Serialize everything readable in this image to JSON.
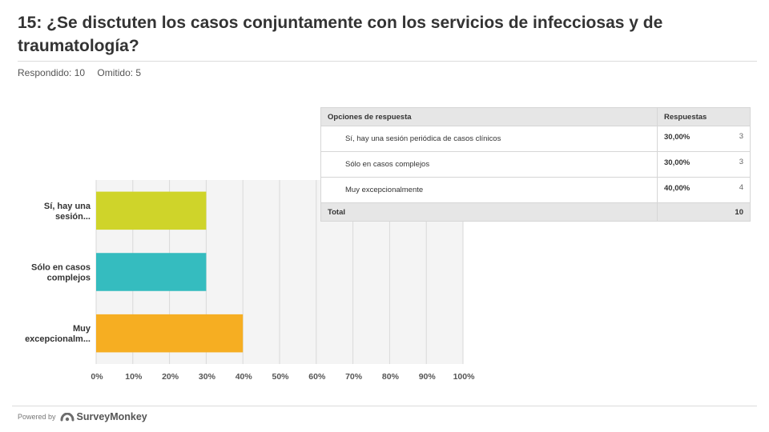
{
  "question": {
    "title": "15: ¿Se disctuten los casos conjuntamente con los servicios de infecciosas y de traumatología?",
    "answered_label": "Respondido: 10",
    "skipped_label": "Omitido: 5"
  },
  "chart_data": {
    "type": "bar",
    "orientation": "horizontal",
    "categories": [
      [
        "Sí, hay una",
        "sesión..."
      ],
      [
        "Sólo en casos",
        "complejos"
      ],
      [
        "Muy",
        "excepcionalm..."
      ]
    ],
    "values": [
      30,
      30,
      40
    ],
    "colors": [
      "#cfd42a",
      "#35bcbf",
      "#f6ae22"
    ],
    "xlim": [
      0,
      100
    ],
    "xticks": [
      "0%",
      "10%",
      "20%",
      "30%",
      "40%",
      "50%",
      "60%",
      "70%",
      "80%",
      "90%",
      "100%"
    ],
    "grid": true
  },
  "table": {
    "headers": [
      "Opciones de respuesta",
      "Respuestas"
    ],
    "rows": [
      {
        "option": "Sí, hay una sesión periódica de casos clínicos",
        "percent": "30,00%",
        "count": "3"
      },
      {
        "option": "Sólo en casos complejos",
        "percent": "30,00%",
        "count": "3"
      },
      {
        "option": "Muy excepcionalmente",
        "percent": "40,00%",
        "count": "4"
      }
    ],
    "total_label": "Total",
    "total_value": "10"
  },
  "footer": {
    "powered_by": "Powered by",
    "brand": "SurveyMonkey"
  }
}
